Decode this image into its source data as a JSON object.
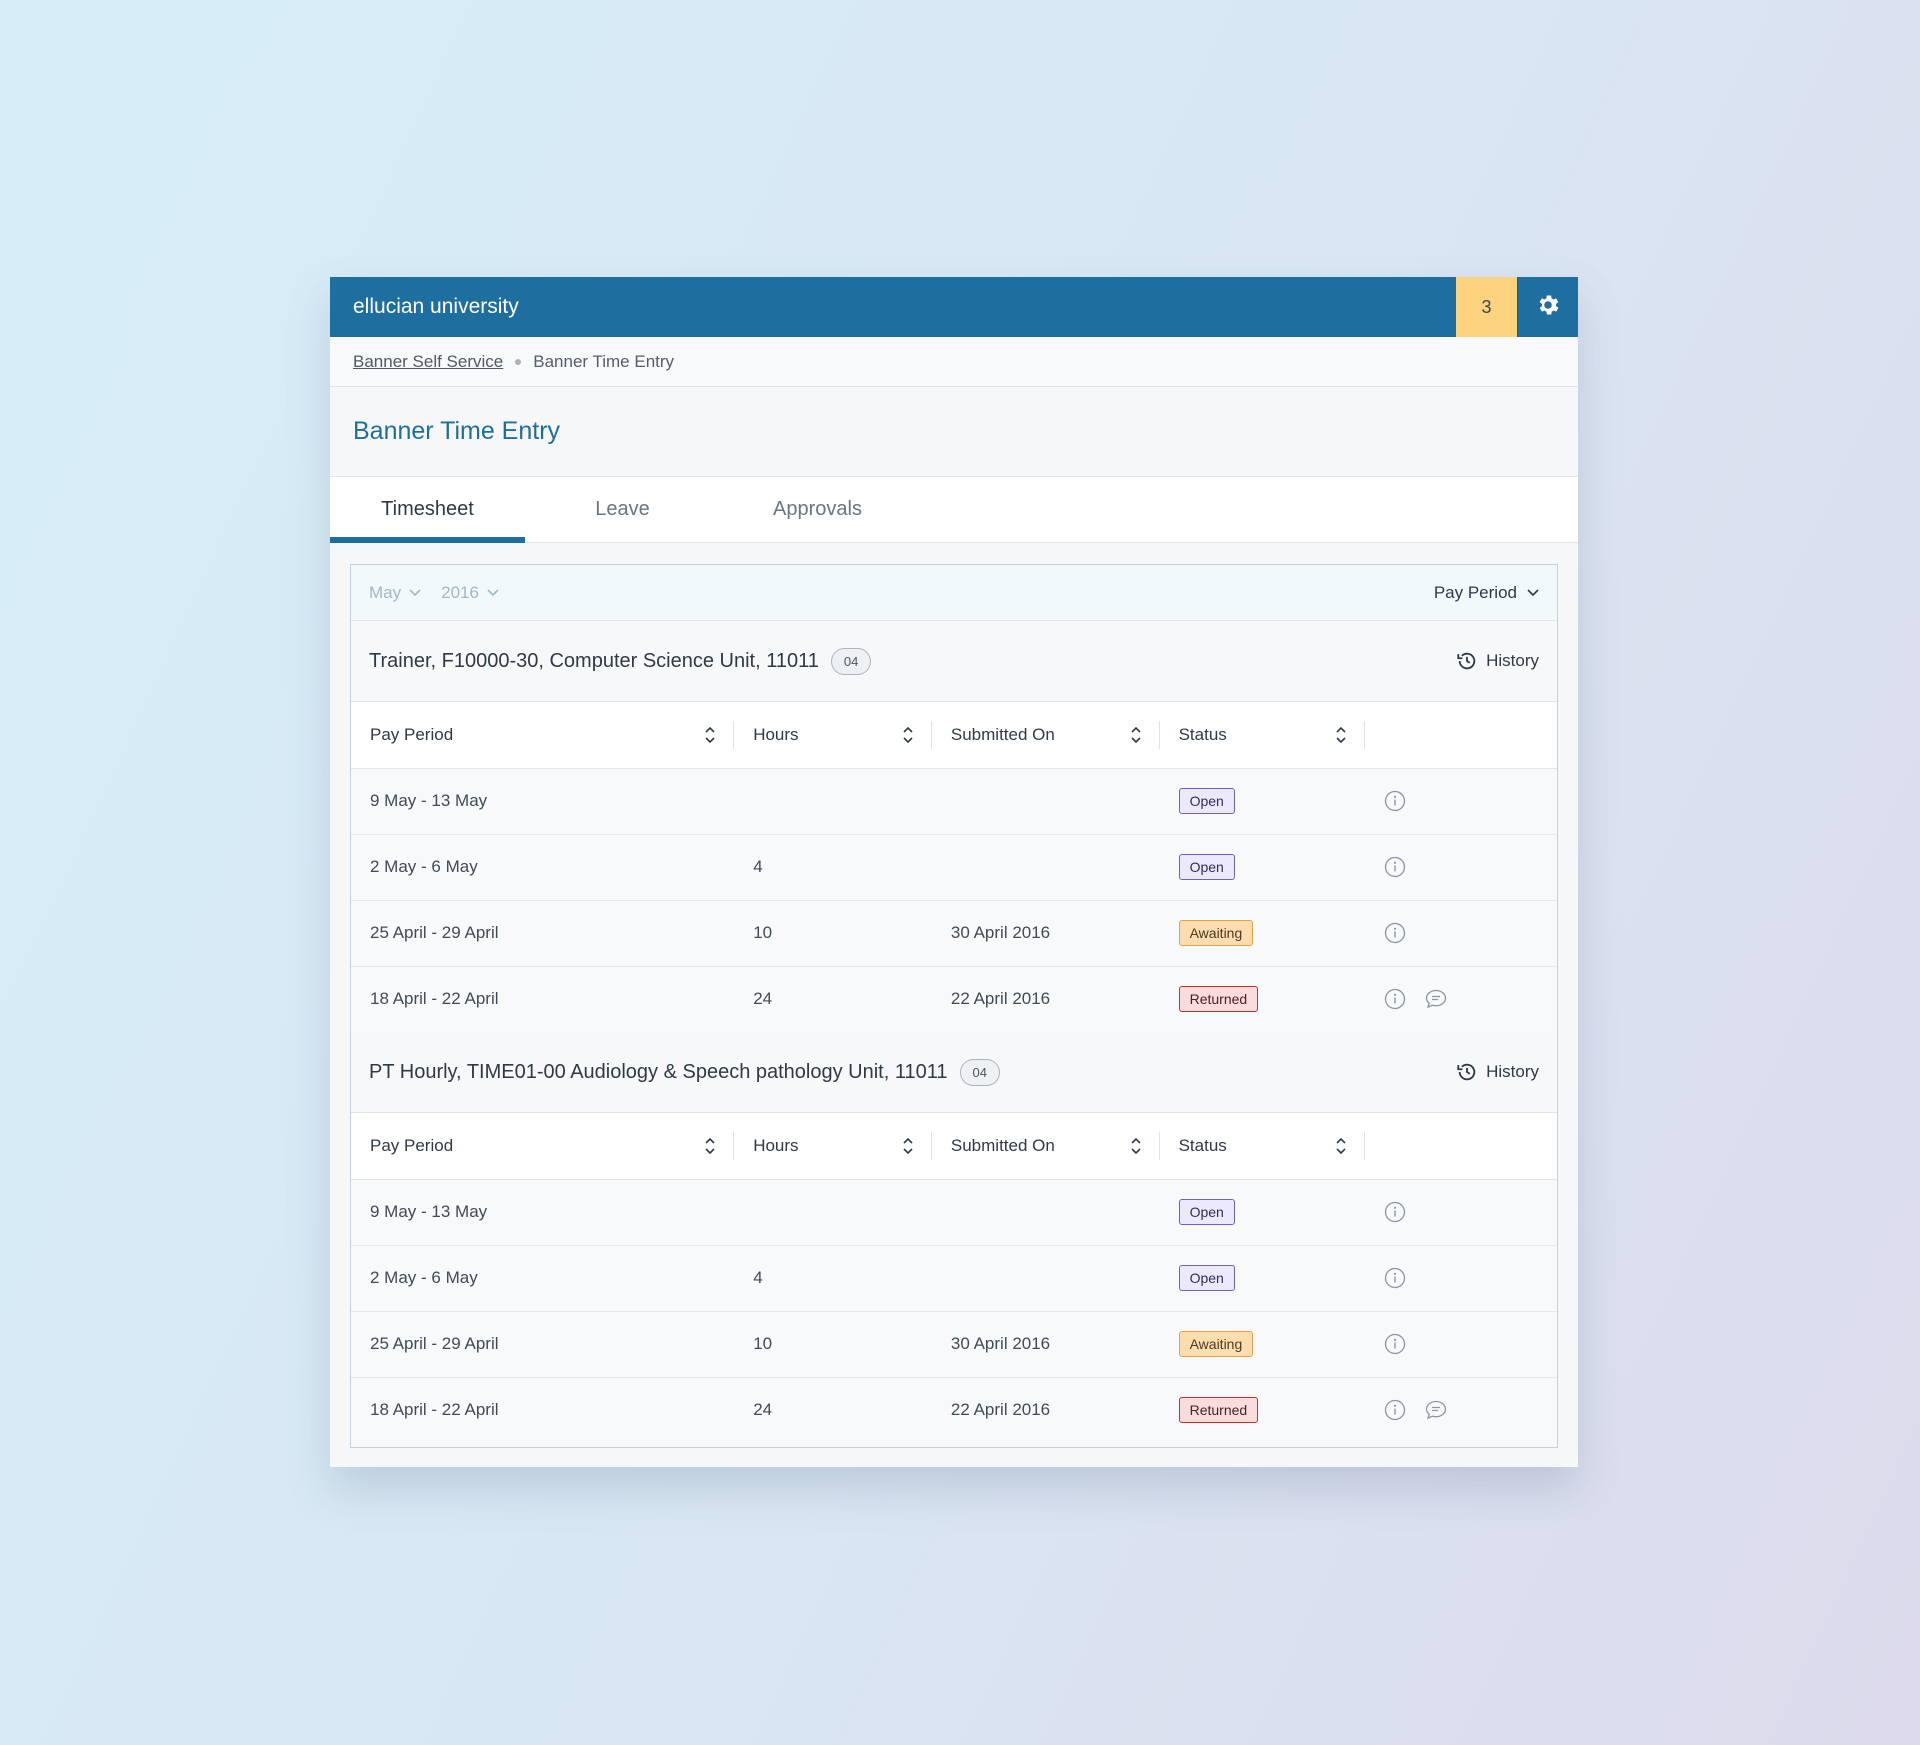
{
  "header": {
    "brand": "ellucian university",
    "notification_count": "3"
  },
  "breadcrumb": {
    "root": "Banner Self Service",
    "current": "Banner Time Entry"
  },
  "page_title": "Banner Time Entry",
  "tabs": [
    {
      "label": "Timesheet",
      "active": true
    },
    {
      "label": "Leave",
      "active": false
    },
    {
      "label": "Approvals",
      "active": false
    }
  ],
  "filters": {
    "month": "May",
    "year": "2016",
    "view": "Pay Period"
  },
  "columns": [
    "Pay Period",
    "Hours",
    "Submitted On",
    "Status"
  ],
  "history_label": "History",
  "jobs": [
    {
      "title": "Trainer, F10000-30, Computer Science Unit, 11011",
      "count": "04",
      "rows": [
        {
          "period": "9 May - 13 May",
          "hours": "",
          "submitted": "",
          "status": "Open",
          "comment": false
        },
        {
          "period": "2 May - 6 May",
          "hours": "4",
          "submitted": "",
          "status": "Open",
          "comment": false
        },
        {
          "period": "25 April - 29 April",
          "hours": "10",
          "submitted": "30 April 2016",
          "status": "Awaiting",
          "comment": false
        },
        {
          "period": "18 April - 22 April",
          "hours": "24",
          "submitted": "22 April 2016",
          "status": "Returned",
          "comment": true
        }
      ]
    },
    {
      "title": "PT Hourly, TIME01-00 Audiology & Speech pathology Unit, 11011",
      "count": "04",
      "rows": [
        {
          "period": "9 May - 13 May",
          "hours": "",
          "submitted": "",
          "status": "Open",
          "comment": false
        },
        {
          "period": "2 May - 6 May",
          "hours": "4",
          "submitted": "",
          "status": "Open",
          "comment": false
        },
        {
          "period": "25 April - 29 April",
          "hours": "10",
          "submitted": "30 April 2016",
          "status": "Awaiting",
          "comment": false
        },
        {
          "period": "18 April - 22 April",
          "hours": "24",
          "submitted": "22 April 2016",
          "status": "Returned",
          "comment": true
        }
      ]
    }
  ],
  "status_colors": {
    "Open": "#6e5fc8",
    "Awaiting": "#e4a345",
    "Returned": "#cf2c2c"
  },
  "brand_color": "#1f6ea0"
}
